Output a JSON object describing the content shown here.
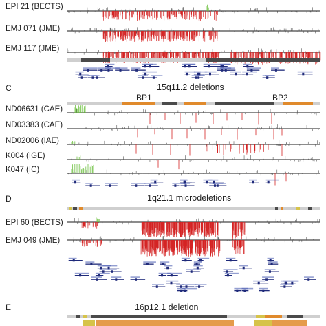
{
  "colors": {
    "deletion": "#d42424",
    "duplication": "#6fc142",
    "baseline": "#1a1a1a",
    "noise": "#555555",
    "gene": "#1f2a7a",
    "cytoband_orange": "#e08a2c",
    "cytoband_dark": "#4a4a4a",
    "cytoband_light": "#cfcfcf",
    "cytoband_yellow": "#d6c34a"
  },
  "panel_b": {
    "samples": [
      {
        "label": "EPI 21 (BECTS)"
      },
      {
        "label": "EMJ 071 (JME)"
      },
      {
        "label": "EMJ 117 (JME)"
      }
    ]
  },
  "panel_c": {
    "letter": "C",
    "title": "15q11.2 deletions",
    "breakpoints": [
      "BP1",
      "BP2"
    ],
    "samples": [
      {
        "label": "ND06631 (CAE)"
      },
      {
        "label": "ND03383 (CAE)"
      },
      {
        "label": "ND02006 (IAE)"
      },
      {
        "label": "K004 (IGE)"
      },
      {
        "label": "K047 (IC)"
      }
    ]
  },
  "panel_d": {
    "letter": "D",
    "title": "1q21.1 microdeletions",
    "samples": [
      {
        "label": "EPI 60 (BECTS)"
      },
      {
        "label": "EMJ 049 (JME)"
      }
    ]
  },
  "panel_e": {
    "letter": "E",
    "title": "16p12.1 deletion"
  }
}
